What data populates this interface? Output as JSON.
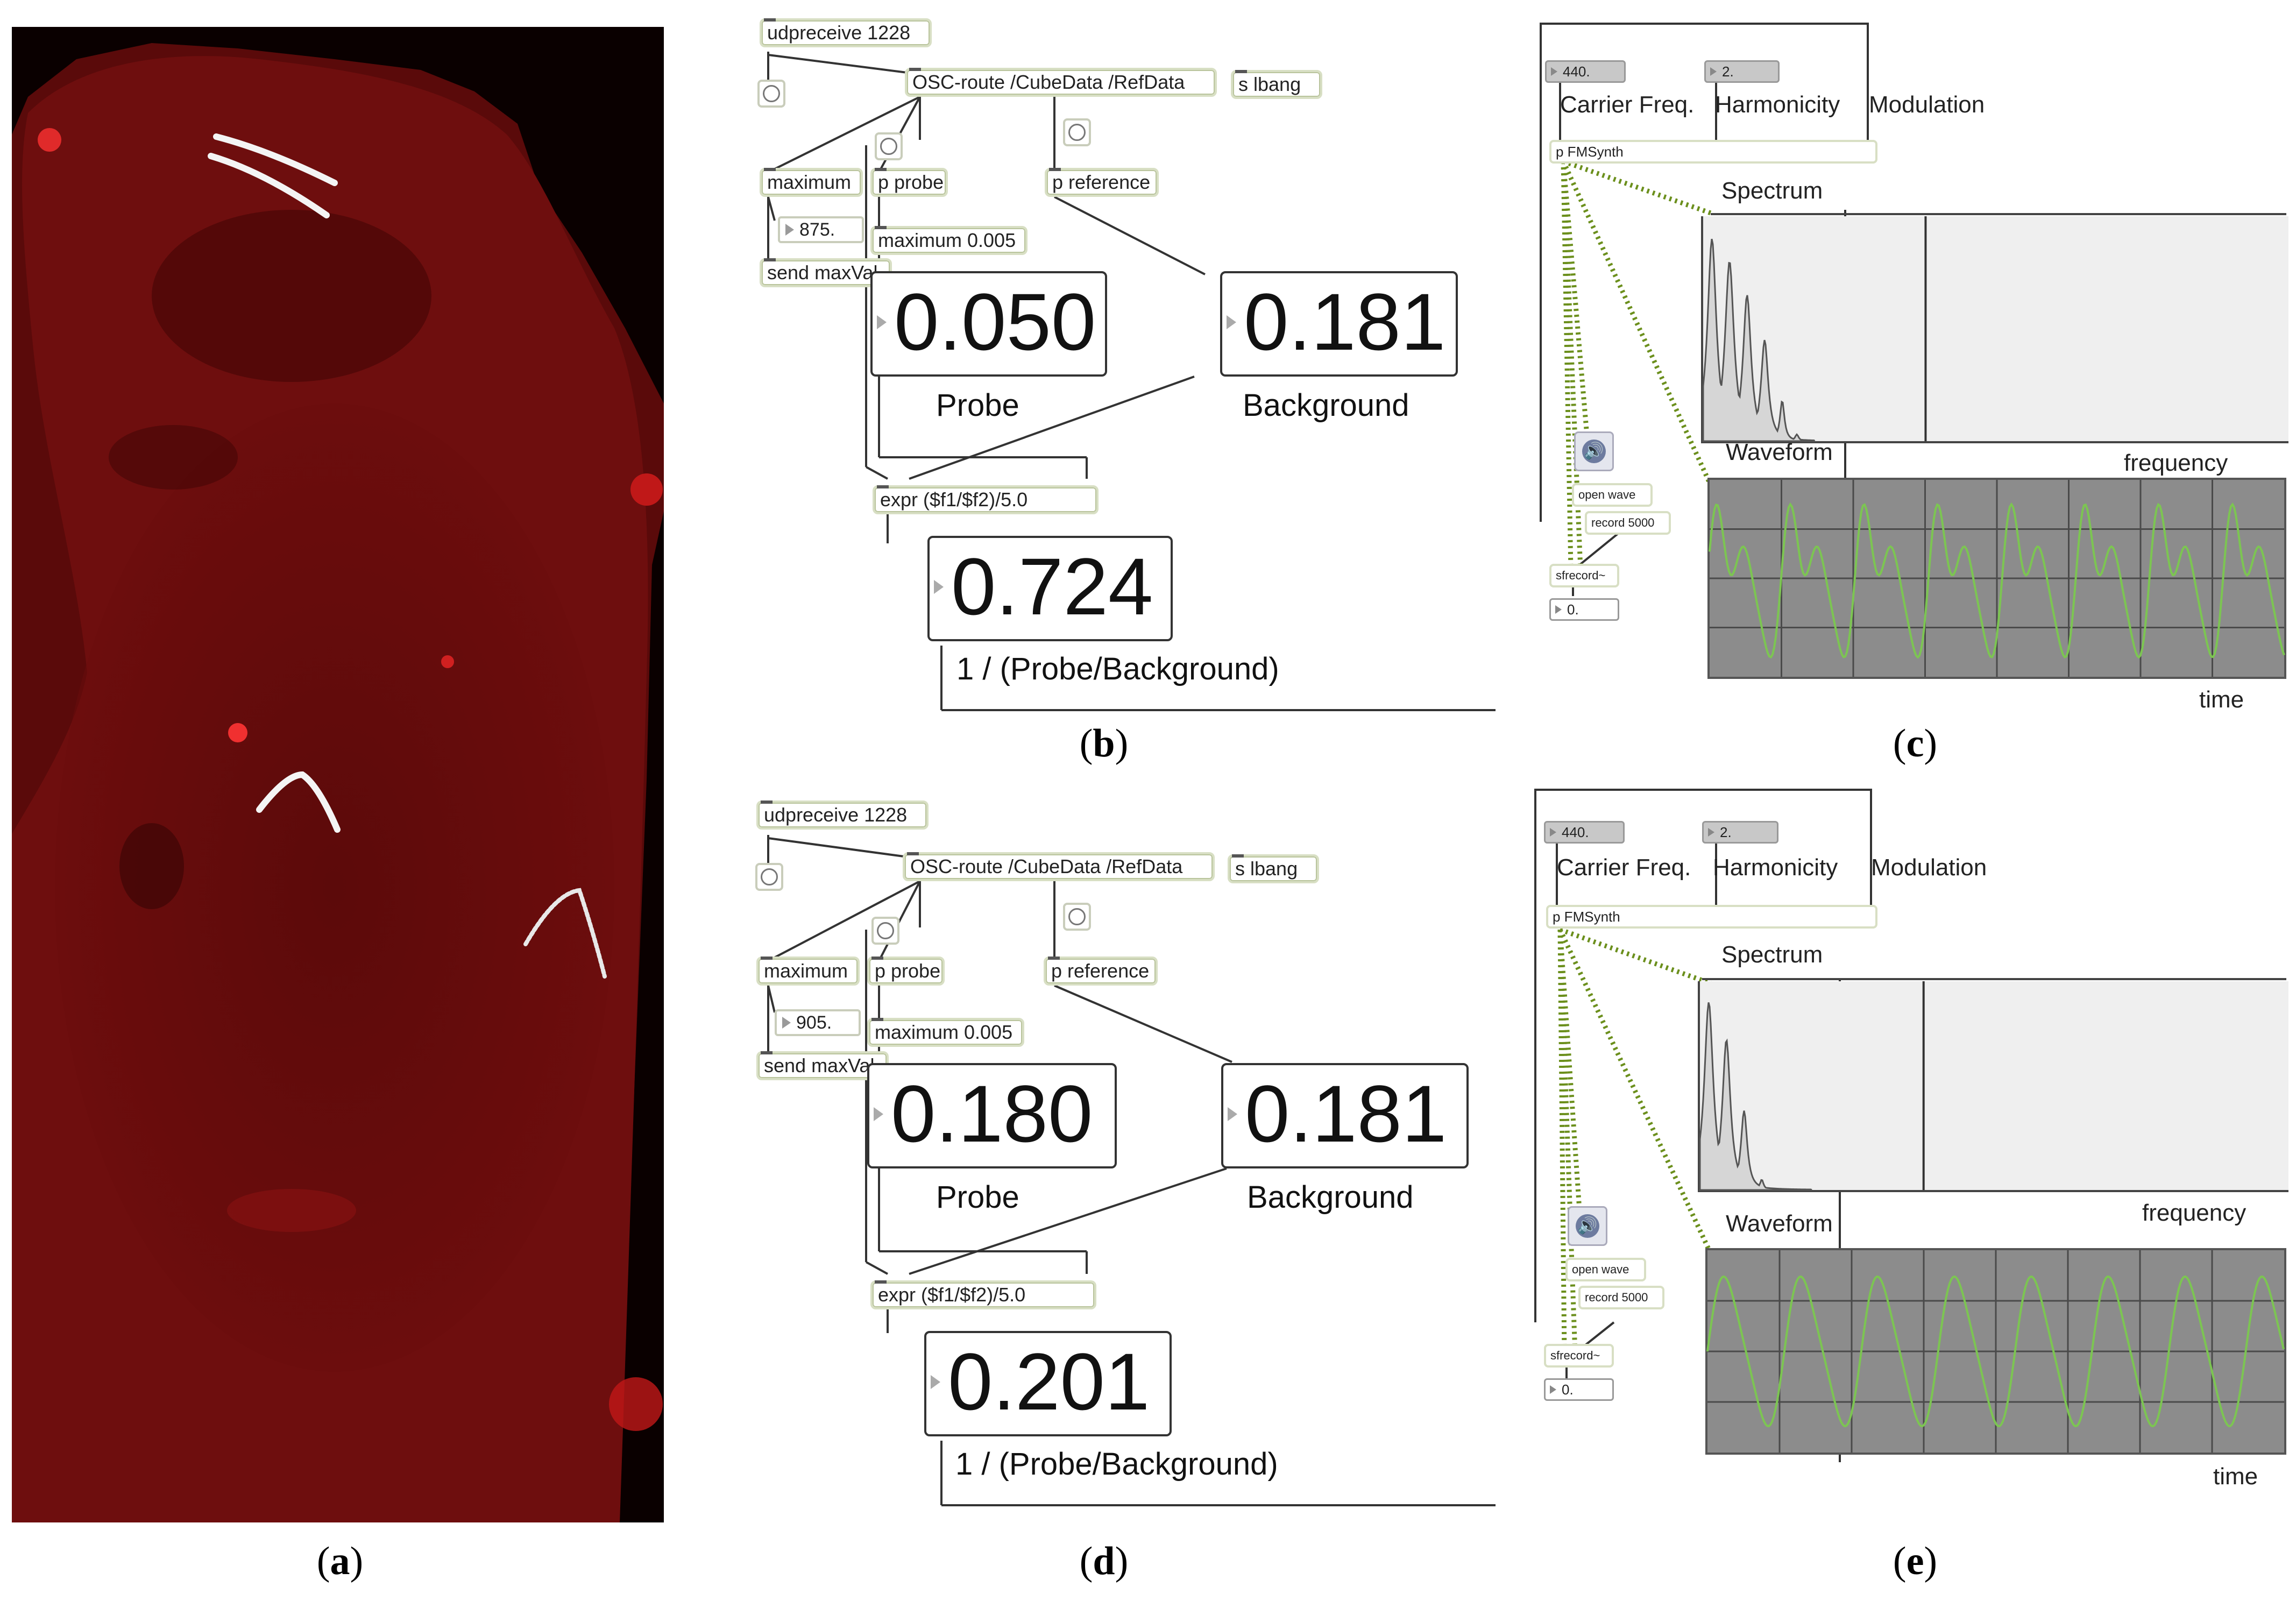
{
  "panels": {
    "a": {
      "label": "a"
    },
    "b": {
      "label": "b",
      "udpreceive": "udpreceive 1228",
      "osc_route": "OSC-route /CubeData /RefData",
      "s_lbang": "s lbang",
      "maximum": "maximum",
      "max_value": "875.",
      "send_maxval": "send maxVal",
      "p_probe": "p probe",
      "p_reference": "p reference",
      "maximum_005": "maximum 0.005",
      "probe_value": "0.050",
      "probe_label": "Probe",
      "background_value": "0.181",
      "background_label": "Background",
      "expr": "expr ($f1/$f2)/5.0",
      "result_value": "0.724",
      "result_label": "1 / (Probe/Background)"
    },
    "c": {
      "label": "c",
      "carrier_value": "440.",
      "harmonicity_value": "2.",
      "carrier_label": "Carrier Freq.",
      "harmonicity_label": "Harmonicity",
      "modulation_label": "Modulation",
      "p_fmsynth": "p FMSynth",
      "spectrum_label": "Spectrum",
      "waveform_label": "Waveform",
      "frequency_label": "frequency",
      "time_label": "time",
      "open_wave": "open wave",
      "record": "record 5000",
      "sfrecord": "sfrecord~",
      "sf_value": "0."
    },
    "d": {
      "label": "d",
      "udpreceive": "udpreceive 1228",
      "osc_route": "OSC-route /CubeData /RefData",
      "s_lbang": "s lbang",
      "maximum": "maximum",
      "max_value": "905.",
      "send_maxval": "send maxVal",
      "p_probe": "p probe",
      "p_reference": "p reference",
      "maximum_005": "maximum 0.005",
      "probe_value": "0.180",
      "probe_label": "Probe",
      "background_value": "0.181",
      "background_label": "Background",
      "expr": "expr ($f1/$f2)/5.0",
      "result_value": "0.201",
      "result_label": "1 / (Probe/Background)"
    },
    "e": {
      "label": "e",
      "carrier_value": "440.",
      "harmonicity_value": "2.",
      "carrier_label": "Carrier Freq.",
      "harmonicity_label": "Harmonicity",
      "modulation_label": "Modulation",
      "p_fmsynth": "p FMSynth",
      "spectrum_label": "Spectrum",
      "waveform_label": "Waveform",
      "frequency_label": "frequency",
      "time_label": "time",
      "open_wave": "open wave",
      "record": "record 5000",
      "sfrecord": "sfrecord~",
      "sf_value": "0."
    }
  },
  "colors": {
    "fluorescence": "#a01010",
    "scope_bg": "#8c8c8c",
    "scope_grid": "#4a4a4a",
    "waveform": "#7cc552",
    "patch_cord": "#6b8f1c",
    "spectrum_fill": "#d8d8d8"
  }
}
